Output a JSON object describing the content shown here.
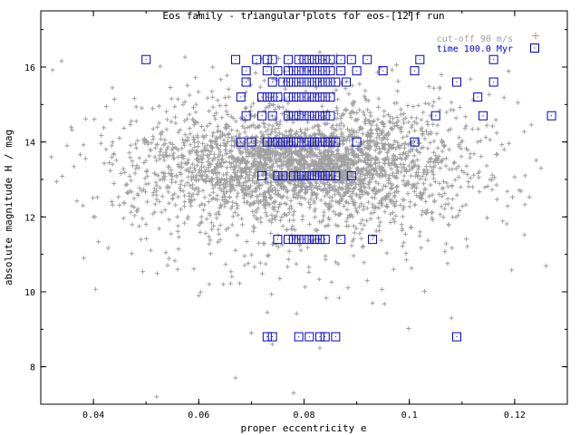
{
  "chart_data": {
    "type": "scatter",
    "title": "Eos family - triangular plots for eos-[12]f run",
    "xlabel": "proper eccentricity e",
    "ylabel": "absolute magnitude H / mag",
    "xlim": [
      0.03,
      0.13
    ],
    "ylim": [
      7.0,
      17.5
    ],
    "xticks": [
      0.04,
      0.06,
      0.08,
      0.1,
      0.12
    ],
    "xtick_labels": [
      "0.04",
      "0.06",
      "0.08",
      "0.1",
      "0.12"
    ],
    "yticks": [
      8,
      10,
      12,
      14,
      16
    ],
    "ytick_labels": [
      "8",
      "10",
      "12",
      "14",
      "16"
    ],
    "grid": false,
    "legend_position": "top-right",
    "series": [
      {
        "name": "cut-off 90 m/s",
        "marker": "plus",
        "color": "#a0a0a0",
        "cloud": {
          "count": 3200,
          "center_e": 0.079,
          "spread_e": 0.016,
          "center_H": 13.4,
          "spread_H": 0.9
        },
        "points": [
          [
            0.052,
            7.2
          ],
          [
            0.067,
            7.7
          ],
          [
            0.078,
            7.3
          ],
          [
            0.108,
            9.3
          ],
          [
            0.074,
            8.6
          ],
          [
            0.06,
            9.9
          ],
          [
            0.056,
            10.6
          ],
          [
            0.092,
            10.3
          ],
          [
            0.097,
            10.6
          ],
          [
            0.04,
            12.0
          ],
          [
            0.038,
            12.3
          ],
          [
            0.035,
            13.9
          ],
          [
            0.032,
            13.6
          ],
          [
            0.125,
            13.3
          ],
          [
            0.122,
            13.1
          ],
          [
            0.118,
            13.8
          ],
          [
            0.113,
            14.0
          ],
          [
            0.104,
            14.7
          ],
          [
            0.057,
            15.0
          ],
          [
            0.054,
            14.6
          ],
          [
            0.083,
            16.4
          ],
          [
            0.081,
            15.9
          ],
          [
            0.05,
            11.8
          ],
          [
            0.102,
            11.6
          ],
          [
            0.093,
            9.7
          ],
          [
            0.062,
            10.2
          ],
          [
            0.07,
            8.9
          ],
          [
            0.083,
            8.5
          ],
          [
            0.049,
            11.4
          ],
          [
            0.112,
            12.8
          ]
        ]
      },
      {
        "name": "time 100.0 Myr",
        "marker": "square",
        "color": "#0000cc",
        "points": [
          [
            0.05,
            16.2
          ],
          [
            0.067,
            16.2
          ],
          [
            0.071,
            16.2
          ],
          [
            0.073,
            16.2
          ],
          [
            0.074,
            16.2
          ],
          [
            0.077,
            16.2
          ],
          [
            0.079,
            16.2
          ],
          [
            0.08,
            16.2
          ],
          [
            0.081,
            16.2
          ],
          [
            0.082,
            16.2
          ],
          [
            0.083,
            16.2
          ],
          [
            0.084,
            16.2
          ],
          [
            0.085,
            16.2
          ],
          [
            0.087,
            16.2
          ],
          [
            0.089,
            16.2
          ],
          [
            0.092,
            16.2
          ],
          [
            0.102,
            16.2
          ],
          [
            0.116,
            16.2
          ],
          [
            0.069,
            15.9
          ],
          [
            0.073,
            15.9
          ],
          [
            0.075,
            15.9
          ],
          [
            0.077,
            15.9
          ],
          [
            0.078,
            15.9
          ],
          [
            0.079,
            15.9
          ],
          [
            0.08,
            15.9
          ],
          [
            0.081,
            15.9
          ],
          [
            0.082,
            15.9
          ],
          [
            0.083,
            15.9
          ],
          [
            0.084,
            15.9
          ],
          [
            0.085,
            15.9
          ],
          [
            0.087,
            15.9
          ],
          [
            0.09,
            15.9
          ],
          [
            0.095,
            15.9
          ],
          [
            0.101,
            15.9
          ],
          [
            0.069,
            15.6
          ],
          [
            0.074,
            15.6
          ],
          [
            0.076,
            15.6
          ],
          [
            0.077,
            15.6
          ],
          [
            0.078,
            15.6
          ],
          [
            0.079,
            15.6
          ],
          [
            0.08,
            15.6
          ],
          [
            0.081,
            15.6
          ],
          [
            0.082,
            15.6
          ],
          [
            0.083,
            15.6
          ],
          [
            0.084,
            15.6
          ],
          [
            0.085,
            15.6
          ],
          [
            0.086,
            15.6
          ],
          [
            0.088,
            15.6
          ],
          [
            0.109,
            15.6
          ],
          [
            0.116,
            15.6
          ],
          [
            0.068,
            15.2
          ],
          [
            0.072,
            15.2
          ],
          [
            0.073,
            15.2
          ],
          [
            0.074,
            15.2
          ],
          [
            0.075,
            15.2
          ],
          [
            0.077,
            15.2
          ],
          [
            0.078,
            15.2
          ],
          [
            0.079,
            15.2
          ],
          [
            0.08,
            15.2
          ],
          [
            0.081,
            15.2
          ],
          [
            0.082,
            15.2
          ],
          [
            0.083,
            15.2
          ],
          [
            0.084,
            15.2
          ],
          [
            0.085,
            15.2
          ],
          [
            0.113,
            15.2
          ],
          [
            0.069,
            14.7
          ],
          [
            0.072,
            14.7
          ],
          [
            0.074,
            14.7
          ],
          [
            0.077,
            14.7
          ],
          [
            0.078,
            14.7
          ],
          [
            0.079,
            14.7
          ],
          [
            0.08,
            14.7
          ],
          [
            0.081,
            14.7
          ],
          [
            0.082,
            14.7
          ],
          [
            0.083,
            14.7
          ],
          [
            0.084,
            14.7
          ],
          [
            0.085,
            14.7
          ],
          [
            0.105,
            14.7
          ],
          [
            0.114,
            14.7
          ],
          [
            0.127,
            14.7
          ],
          [
            0.068,
            14.0
          ],
          [
            0.07,
            14.0
          ],
          [
            0.073,
            14.0
          ],
          [
            0.074,
            14.0
          ],
          [
            0.075,
            14.0
          ],
          [
            0.076,
            14.0
          ],
          [
            0.077,
            14.0
          ],
          [
            0.078,
            14.0
          ],
          [
            0.079,
            14.0
          ],
          [
            0.08,
            14.0
          ],
          [
            0.081,
            14.0
          ],
          [
            0.082,
            14.0
          ],
          [
            0.083,
            14.0
          ],
          [
            0.084,
            14.0
          ],
          [
            0.085,
            14.0
          ],
          [
            0.086,
            14.0
          ],
          [
            0.09,
            14.0
          ],
          [
            0.101,
            14.0
          ],
          [
            0.072,
            13.1
          ],
          [
            0.075,
            13.1
          ],
          [
            0.076,
            13.1
          ],
          [
            0.078,
            13.1
          ],
          [
            0.079,
            13.1
          ],
          [
            0.08,
            13.1
          ],
          [
            0.081,
            13.1
          ],
          [
            0.082,
            13.1
          ],
          [
            0.083,
            13.1
          ],
          [
            0.084,
            13.1
          ],
          [
            0.085,
            13.1
          ],
          [
            0.086,
            13.1
          ],
          [
            0.089,
            13.1
          ],
          [
            0.075,
            11.4
          ],
          [
            0.077,
            11.4
          ],
          [
            0.078,
            11.4
          ],
          [
            0.079,
            11.4
          ],
          [
            0.08,
            11.4
          ],
          [
            0.081,
            11.4
          ],
          [
            0.082,
            11.4
          ],
          [
            0.083,
            11.4
          ],
          [
            0.084,
            11.4
          ],
          [
            0.087,
            11.4
          ],
          [
            0.093,
            11.4
          ],
          [
            0.073,
            8.8
          ],
          [
            0.074,
            8.8
          ],
          [
            0.079,
            8.8
          ],
          [
            0.081,
            8.8
          ],
          [
            0.083,
            8.8
          ],
          [
            0.084,
            8.8
          ],
          [
            0.086,
            8.8
          ],
          [
            0.109,
            8.8
          ]
        ]
      }
    ]
  }
}
